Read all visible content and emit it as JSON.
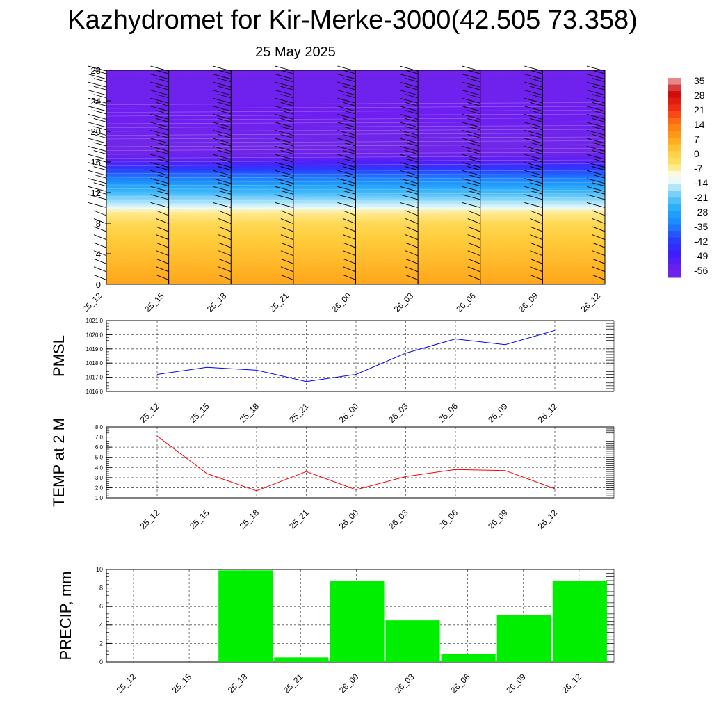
{
  "title": "Kazhydromet for Kir-Merke-3000(42.505 73.358)",
  "subtitle": "25 May 2025",
  "colors": {
    "pmsl_line": "#0000ff",
    "temp_line": "#ff0000",
    "precip_bar": "#00ee00",
    "grid": "#555555"
  },
  "chart_data": [
    {
      "type": "heatmap",
      "name": "cross-section",
      "x_ticks": [
        "25_12",
        "25_15",
        "25_18",
        "25_21",
        "26_00",
        "26_03",
        "26_06",
        "26_09",
        "26_12"
      ],
      "y_ticks": [
        "0",
        "4",
        "8",
        "12",
        "16",
        "20",
        "24",
        "28"
      ],
      "ylim": [
        0,
        28
      ],
      "colorbar_labels": [
        "35",
        "28",
        "21",
        "14",
        "7",
        "0",
        "-7",
        "-14",
        "-21",
        "-28",
        "-35",
        "-42",
        "-49",
        "-56"
      ],
      "temperature_profile": {
        "levels": [
          0,
          2,
          4,
          6,
          8,
          9.5,
          10,
          11,
          12,
          13,
          14,
          15,
          16,
          17,
          18,
          19,
          20,
          21,
          22,
          23,
          24,
          28
        ],
        "values": [
          6,
          4,
          2,
          0,
          -3,
          -8,
          -14,
          -19,
          -25,
          -30,
          -36,
          -42,
          -52,
          -58,
          -60,
          -59,
          -58,
          -57,
          -56,
          -56,
          -57,
          -58
        ]
      }
    },
    {
      "type": "line",
      "name": "pmsl",
      "ylabel": "PMSL",
      "categories": [
        "25_12",
        "25_15",
        "25_18",
        "25_21",
        "26_00",
        "26_03",
        "26_06",
        "26_09",
        "26_12"
      ],
      "values": [
        1017.2,
        1017.7,
        1017.5,
        1016.7,
        1017.2,
        1018.7,
        1019.7,
        1019.3,
        1020.3
      ],
      "ylim": [
        1016.0,
        1021.0
      ],
      "y_ticks": [
        "1016.0",
        "1017.0",
        "1018.0",
        "1019.0",
        "1020.0",
        "1021.0"
      ]
    },
    {
      "type": "line",
      "name": "temp",
      "ylabel": "TEMP at 2 M",
      "categories": [
        "25_12",
        "25_15",
        "25_18",
        "25_21",
        "26_00",
        "26_03",
        "26_06",
        "26_09",
        "26_12"
      ],
      "values": [
        7.1,
        3.4,
        1.7,
        3.6,
        1.8,
        3.1,
        3.8,
        3.7,
        1.9
      ],
      "ylim": [
        1.0,
        8.0
      ],
      "y_ticks": [
        "1.0",
        "2.0",
        "3.0",
        "4.0",
        "5.0",
        "6.0",
        "7.0",
        "8.0"
      ]
    },
    {
      "type": "bar",
      "name": "precip",
      "ylabel": "PRECIP, mm",
      "categories": [
        "25_12",
        "25_15",
        "25_18",
        "25_21",
        "26_00",
        "26_03",
        "26_06",
        "26_09",
        "26_12"
      ],
      "values": [
        0,
        0,
        9.9,
        0.5,
        8.8,
        4.5,
        0.9,
        5.1,
        8.8
      ],
      "ylim": [
        0,
        10
      ],
      "y_ticks": [
        "0",
        "2",
        "4",
        "6",
        "8",
        "10"
      ]
    }
  ]
}
